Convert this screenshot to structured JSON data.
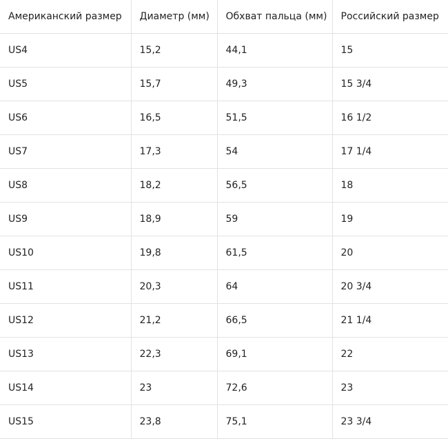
{
  "table": {
    "header": [
      "Американский размер",
      "Диаметр (мм)",
      "Обхват пальца (мм)",
      "Российский размер"
    ],
    "rows": [
      [
        "US4",
        "15,2",
        "44,1",
        "15"
      ],
      [
        "US5",
        "15,7",
        "49,3",
        "15 3/4"
      ],
      [
        "US6",
        "16,5",
        "51,5",
        "16 1/2"
      ],
      [
        "US7",
        "17,3",
        "54",
        "17 1/4"
      ],
      [
        "US8",
        "18,2",
        "56,5",
        "18"
      ],
      [
        "US9",
        "18,9",
        "59",
        "19"
      ],
      [
        "US10",
        "19,8",
        "61,5",
        "20"
      ],
      [
        "US11",
        "20,3",
        "64",
        "20 3/4"
      ],
      [
        "US12",
        "21,2",
        "66,5",
        "21 1/4"
      ],
      [
        "US13",
        "22,3",
        "69,1",
        "22"
      ],
      [
        "US14",
        "23",
        "72,6",
        "23"
      ],
      [
        "US15",
        "23,8",
        "75,1",
        "23 3/4"
      ]
    ]
  }
}
